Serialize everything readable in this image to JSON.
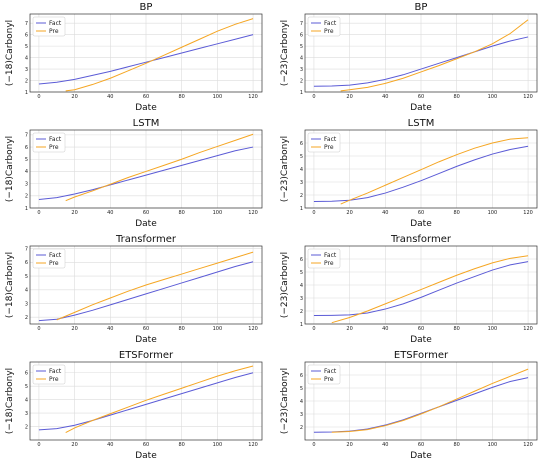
{
  "colors": {
    "fact": "#5b5bd6",
    "pre": "#f5a623",
    "grid": "#dcdcdc",
    "axis": "#333333"
  },
  "chart_data": [
    {
      "type": "line",
      "title": "BP",
      "xlabel": "Date",
      "ylabel": "(−18)Carbonyl",
      "xlim": [
        -5,
        125
      ],
      "ylim": [
        1,
        7.8
      ],
      "xticks": [
        0,
        20,
        40,
        60,
        80,
        100,
        120
      ],
      "yticks": [
        1,
        2,
        3,
        4,
        5,
        6,
        7
      ],
      "grid": true,
      "legend": "top-left",
      "series": [
        {
          "name": "Fact",
          "x": [
            0,
            10,
            20,
            30,
            40,
            50,
            60,
            70,
            80,
            90,
            100,
            110,
            120
          ],
          "y": [
            1.7,
            1.85,
            2.1,
            2.45,
            2.8,
            3.2,
            3.6,
            4.0,
            4.4,
            4.8,
            5.2,
            5.6,
            6.0
          ]
        },
        {
          "name": "Pre",
          "x": [
            15,
            20,
            30,
            40,
            50,
            60,
            70,
            80,
            90,
            100,
            110,
            120
          ],
          "y": [
            1.1,
            1.2,
            1.65,
            2.2,
            2.85,
            3.5,
            4.2,
            4.9,
            5.6,
            6.3,
            6.9,
            7.4
          ]
        }
      ]
    },
    {
      "type": "line",
      "title": "BP",
      "xlabel": "Date",
      "ylabel": "(−23)Carbonyl",
      "xlim": [
        -5,
        125
      ],
      "ylim": [
        1,
        7.8
      ],
      "xticks": [
        0,
        20,
        40,
        60,
        80,
        100,
        120
      ],
      "yticks": [
        1,
        2,
        3,
        4,
        5,
        6,
        7
      ],
      "grid": true,
      "legend": "top-left",
      "series": [
        {
          "name": "Fact",
          "x": [
            0,
            10,
            20,
            30,
            40,
            50,
            60,
            70,
            80,
            90,
            100,
            110,
            120
          ],
          "y": [
            1.5,
            1.52,
            1.6,
            1.8,
            2.1,
            2.5,
            3.0,
            3.5,
            4.0,
            4.5,
            5.0,
            5.45,
            5.8
          ]
        },
        {
          "name": "Pre",
          "x": [
            15,
            20,
            30,
            40,
            50,
            60,
            70,
            80,
            90,
            100,
            110,
            120
          ],
          "y": [
            1.1,
            1.2,
            1.4,
            1.75,
            2.2,
            2.75,
            3.3,
            3.9,
            4.5,
            5.2,
            6.1,
            7.3
          ]
        }
      ]
    },
    {
      "type": "line",
      "title": "LSTM",
      "xlabel": "Date",
      "ylabel": "(−18)Carbonyl",
      "xlim": [
        -5,
        125
      ],
      "ylim": [
        1,
        7.4
      ],
      "xticks": [
        0,
        20,
        40,
        60,
        80,
        100,
        120
      ],
      "yticks": [
        1,
        2,
        3,
        4,
        5,
        6,
        7
      ],
      "grid": true,
      "legend": "top-left",
      "series": [
        {
          "name": "Fact",
          "x": [
            0,
            10,
            20,
            30,
            40,
            50,
            60,
            70,
            80,
            90,
            100,
            110,
            120
          ],
          "y": [
            1.7,
            1.85,
            2.15,
            2.5,
            2.9,
            3.3,
            3.7,
            4.1,
            4.5,
            4.9,
            5.3,
            5.7,
            6.0
          ]
        },
        {
          "name": "Pre",
          "x": [
            15,
            20,
            30,
            40,
            50,
            60,
            70,
            80,
            90,
            100,
            110,
            120
          ],
          "y": [
            1.6,
            1.9,
            2.4,
            2.95,
            3.5,
            4.0,
            4.5,
            5.0,
            5.55,
            6.05,
            6.55,
            7.05
          ]
        }
      ]
    },
    {
      "type": "line",
      "title": "LSTM",
      "xlabel": "Date",
      "ylabel": "(−23)Carbonyl",
      "xlim": [
        -5,
        125
      ],
      "ylim": [
        1,
        7.0
      ],
      "xticks": [
        0,
        20,
        40,
        60,
        80,
        100,
        120
      ],
      "yticks": [
        1,
        2,
        3,
        4,
        5,
        6
      ],
      "grid": true,
      "legend": "top-left",
      "series": [
        {
          "name": "Fact",
          "x": [
            0,
            10,
            20,
            30,
            40,
            50,
            60,
            70,
            80,
            90,
            100,
            110,
            120
          ],
          "y": [
            1.5,
            1.52,
            1.6,
            1.8,
            2.15,
            2.6,
            3.1,
            3.65,
            4.2,
            4.7,
            5.15,
            5.5,
            5.75
          ]
        },
        {
          "name": "Pre",
          "x": [
            15,
            20,
            30,
            40,
            50,
            60,
            70,
            80,
            90,
            100,
            110,
            120
          ],
          "y": [
            1.3,
            1.6,
            2.15,
            2.75,
            3.35,
            3.95,
            4.55,
            5.1,
            5.6,
            6.0,
            6.3,
            6.4
          ]
        }
      ]
    },
    {
      "type": "line",
      "title": "Transformer",
      "xlabel": "Date",
      "ylabel": "(−18)Carbonyl",
      "xlim": [
        -5,
        125
      ],
      "ylim": [
        1.5,
        7.2
      ],
      "xticks": [
        0,
        20,
        40,
        60,
        80,
        100,
        120
      ],
      "yticks": [
        2,
        3,
        4,
        5,
        6,
        7
      ],
      "grid": true,
      "legend": "top-left",
      "series": [
        {
          "name": "Fact",
          "x": [
            0,
            10,
            20,
            30,
            40,
            50,
            60,
            70,
            80,
            90,
            100,
            110,
            120
          ],
          "y": [
            1.75,
            1.85,
            2.15,
            2.5,
            2.9,
            3.3,
            3.7,
            4.1,
            4.5,
            4.9,
            5.3,
            5.7,
            6.05
          ]
        },
        {
          "name": "Pre",
          "x": [
            10,
            20,
            30,
            40,
            50,
            60,
            70,
            80,
            90,
            100,
            110,
            120
          ],
          "y": [
            1.8,
            2.35,
            2.9,
            3.4,
            3.9,
            4.35,
            4.75,
            5.15,
            5.55,
            5.95,
            6.35,
            6.75
          ]
        }
      ]
    },
    {
      "type": "line",
      "title": "Transformer",
      "xlabel": "Date",
      "ylabel": "(−23)Carbonyl",
      "xlim": [
        -5,
        125
      ],
      "ylim": [
        1,
        7.0
      ],
      "xticks": [
        0,
        20,
        40,
        60,
        80,
        100,
        120
      ],
      "yticks": [
        1,
        2,
        3,
        4,
        5,
        6
      ],
      "grid": true,
      "legend": "top-left",
      "series": [
        {
          "name": "Fact",
          "x": [
            0,
            10,
            20,
            30,
            40,
            50,
            60,
            70,
            80,
            90,
            100,
            110,
            120
          ],
          "y": [
            1.65,
            1.66,
            1.7,
            1.85,
            2.15,
            2.55,
            3.05,
            3.6,
            4.15,
            4.65,
            5.15,
            5.55,
            5.8
          ]
        },
        {
          "name": "Pre",
          "x": [
            10,
            20,
            30,
            40,
            50,
            60,
            70,
            80,
            90,
            100,
            110,
            120
          ],
          "y": [
            1.1,
            1.5,
            2.0,
            2.55,
            3.1,
            3.65,
            4.2,
            4.75,
            5.25,
            5.7,
            6.05,
            6.25
          ]
        }
      ]
    },
    {
      "type": "line",
      "title": "ETSFormer",
      "xlabel": "Date",
      "ylabel": "(−18)Carbonyl",
      "xlim": [
        -5,
        125
      ],
      "ylim": [
        1,
        6.8
      ],
      "xticks": [
        0,
        20,
        40,
        60,
        80,
        100,
        120
      ],
      "yticks": [
        2,
        3,
        4,
        5,
        6
      ],
      "grid": true,
      "legend": "top-left",
      "series": [
        {
          "name": "Fact",
          "x": [
            0,
            10,
            20,
            30,
            40,
            50,
            60,
            70,
            80,
            90,
            100,
            110,
            120
          ],
          "y": [
            1.75,
            1.85,
            2.1,
            2.45,
            2.85,
            3.25,
            3.65,
            4.05,
            4.45,
            4.85,
            5.25,
            5.65,
            6.0
          ]
        },
        {
          "name": "Pre",
          "x": [
            15,
            20,
            30,
            40,
            50,
            60,
            70,
            80,
            90,
            100,
            110,
            120
          ],
          "y": [
            1.55,
            1.9,
            2.45,
            2.95,
            3.45,
            3.95,
            4.4,
            4.85,
            5.3,
            5.75,
            6.15,
            6.5
          ]
        }
      ]
    },
    {
      "type": "line",
      "title": "ETSFormer",
      "xlabel": "Date",
      "ylabel": "(−23)Carbonyl",
      "xlim": [
        -5,
        125
      ],
      "ylim": [
        1,
        7.0
      ],
      "xticks": [
        0,
        20,
        40,
        60,
        80,
        100,
        120
      ],
      "yticks": [
        2,
        3,
        4,
        5,
        6
      ],
      "grid": true,
      "legend": "top-left",
      "series": [
        {
          "name": "Fact",
          "x": [
            0,
            10,
            20,
            30,
            40,
            50,
            60,
            70,
            80,
            90,
            100,
            110,
            120
          ],
          "y": [
            1.6,
            1.62,
            1.68,
            1.85,
            2.15,
            2.55,
            3.05,
            3.55,
            4.05,
            4.55,
            5.05,
            5.5,
            5.8
          ]
        },
        {
          "name": "Pre",
          "x": [
            10,
            20,
            30,
            40,
            50,
            60,
            70,
            80,
            90,
            100,
            110,
            120
          ],
          "y": [
            1.6,
            1.65,
            1.8,
            2.1,
            2.5,
            3.0,
            3.55,
            4.15,
            4.75,
            5.35,
            5.9,
            6.45
          ]
        }
      ]
    }
  ]
}
